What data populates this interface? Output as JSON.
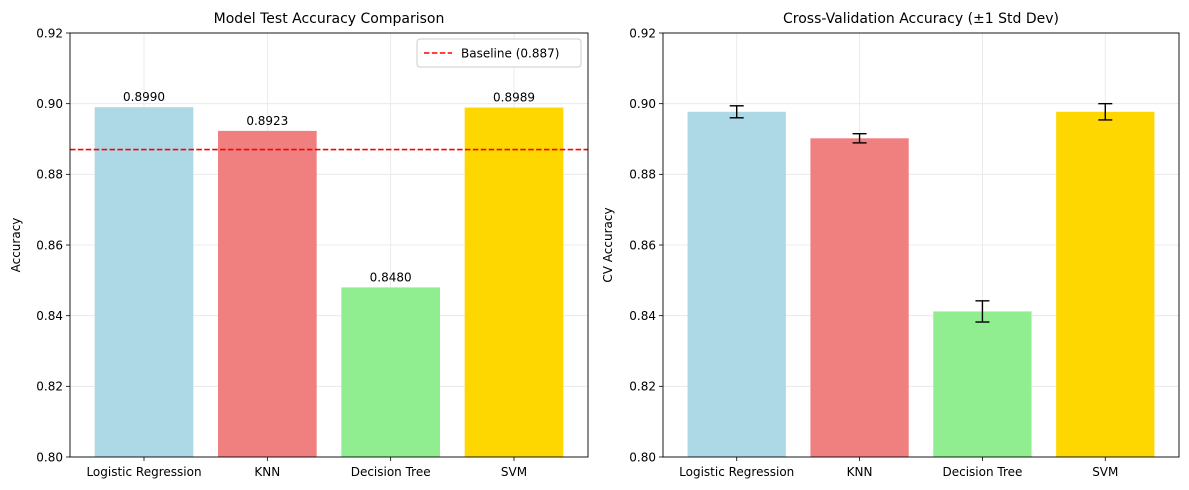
{
  "colors": {
    "bars": [
      "#add8e6",
      "#f08080",
      "#90ee90",
      "#ffd700"
    ],
    "baseline": "#ff0000",
    "grid": "#e6e6e6",
    "axis": "#000000",
    "errorbar": "#000000"
  },
  "chart_data": [
    {
      "type": "bar",
      "title": "Model Test Accuracy Comparison",
      "xlabel": "",
      "ylabel": "Accuracy",
      "categories": [
        "Logistic Regression",
        "KNN",
        "Decision Tree",
        "SVM"
      ],
      "values": [
        0.899,
        0.8923,
        0.848,
        0.8989
      ],
      "value_labels": [
        "0.8990",
        "0.8923",
        "0.8480",
        "0.8989"
      ],
      "ylim": [
        0.8,
        0.92
      ],
      "yticks": [
        0.8,
        0.82,
        0.84,
        0.86,
        0.88,
        0.9,
        0.92
      ],
      "ytick_labels": [
        "0.80",
        "0.82",
        "0.84",
        "0.86",
        "0.88",
        "0.90",
        "0.92"
      ],
      "baseline": {
        "value": 0.887,
        "label": "Baseline (0.887)"
      },
      "grid": true,
      "legend": {
        "position": "upper right",
        "entries": [
          "Baseline (0.887)"
        ]
      }
    },
    {
      "type": "bar",
      "title": "Cross-Validation Accuracy (±1 Std Dev)",
      "xlabel": "",
      "ylabel": "CV Accuracy",
      "categories": [
        "Logistic Regression",
        "KNN",
        "Decision Tree",
        "SVM"
      ],
      "values": [
        0.8977,
        0.8902,
        0.8412,
        0.8977
      ],
      "errors": [
        0.0017,
        0.0013,
        0.003,
        0.0023
      ],
      "ylim": [
        0.8,
        0.92
      ],
      "yticks": [
        0.8,
        0.82,
        0.84,
        0.86,
        0.88,
        0.9,
        0.92
      ],
      "ytick_labels": [
        "0.80",
        "0.82",
        "0.84",
        "0.86",
        "0.88",
        "0.90",
        "0.92"
      ],
      "grid": true
    }
  ]
}
